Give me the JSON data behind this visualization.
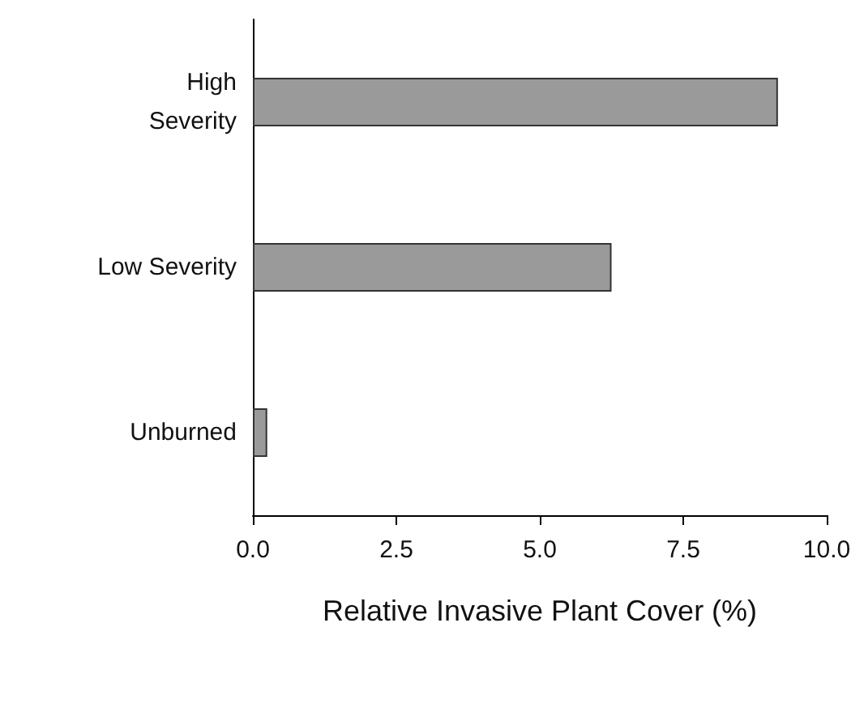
{
  "chart_data": {
    "type": "bar",
    "orientation": "horizontal",
    "xlabel": "Relative Invasive Plant Cover (%)",
    "categories": [
      "High\nSeverity",
      "Low Severity",
      "Unburned"
    ],
    "values": [
      9.15,
      6.25,
      0.25
    ],
    "color": "#9a9a9a",
    "xlim": [
      0,
      10
    ],
    "xticks": [
      {
        "value": 0,
        "label": "0.0"
      },
      {
        "value": 2.5,
        "label": "2.5"
      },
      {
        "value": 5,
        "label": "5.0"
      },
      {
        "value": 7.5,
        "label": "7.5"
      },
      {
        "value": 10,
        "label": "10.0"
      }
    ],
    "grid": false
  }
}
